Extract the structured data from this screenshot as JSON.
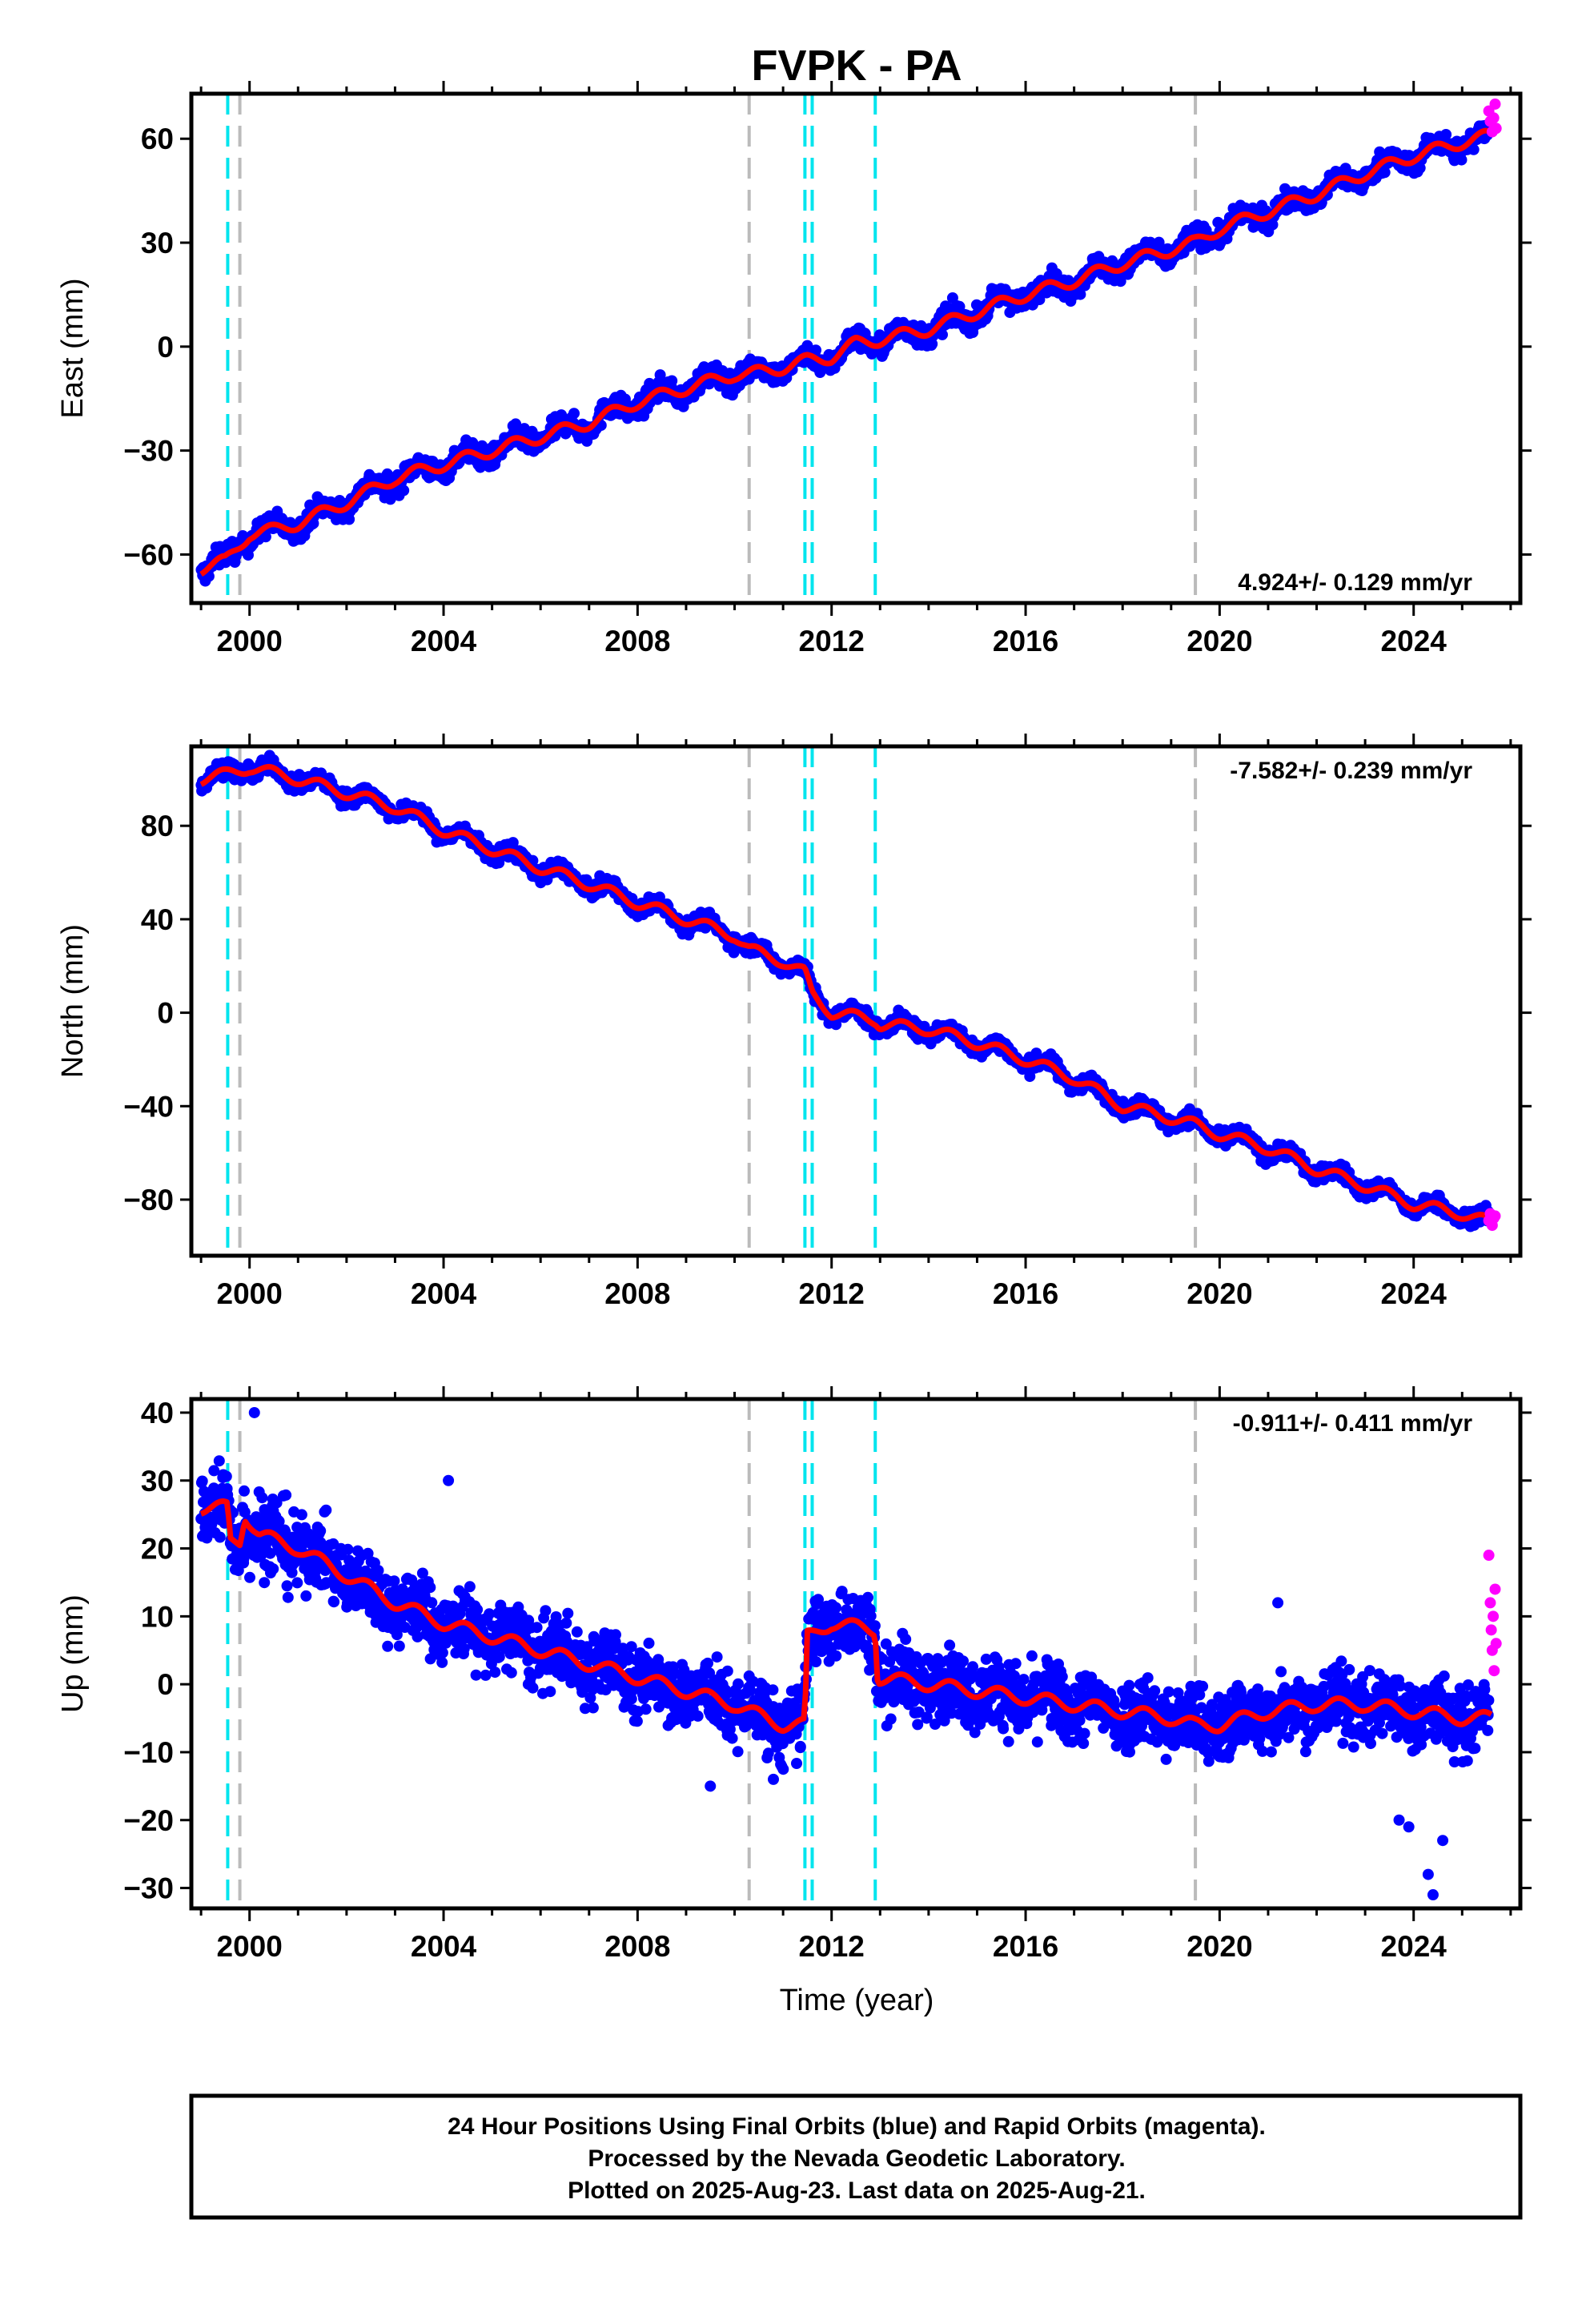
{
  "chart_data": {
    "type": "scatter",
    "title": "FVPK - PA",
    "xlabel": "Time (year)",
    "xlim": [
      1998.8,
      2026.2
    ],
    "xticks": [
      2000,
      2004,
      2008,
      2012,
      2016,
      2020,
      2024
    ],
    "events": {
      "cyan": [
        1999.55,
        2011.45,
        2011.6,
        2012.9
      ],
      "gray": [
        1999.8,
        2010.3,
        2019.5
      ]
    },
    "colors": {
      "final": "#0000ff",
      "rapid": "#ff00ff",
      "model": "#ff0000",
      "cyan_event": "#00e5ee",
      "gray_event": "#bbbbbb"
    },
    "panels": [
      {
        "component": "east",
        "ylabel": "East (mm)",
        "ylim": [
          -74,
          73
        ],
        "yticks": [
          -60,
          -30,
          0,
          30,
          60
        ],
        "rate_label": "4.924+/- 0.129 mm/yr",
        "rate_position": "bottom-right",
        "model_points": [
          [
            1999.0,
            -64
          ],
          [
            1999.5,
            -62
          ],
          [
            2000.0,
            -54
          ],
          [
            2000.5,
            -53
          ],
          [
            2001.0,
            -51
          ],
          [
            2002.0,
            -45
          ],
          [
            2003.0,
            -38
          ],
          [
            2004.0,
            -34
          ],
          [
            2005.0,
            -30
          ],
          [
            2006.0,
            -26
          ],
          [
            2007.0,
            -22
          ],
          [
            2008.0,
            -16
          ],
          [
            2009.0,
            -12
          ],
          [
            2010.0,
            -8
          ],
          [
            2010.3,
            -8
          ],
          [
            2011.0,
            -6
          ],
          [
            2011.5,
            -4
          ],
          [
            2012.0,
            -3
          ],
          [
            2012.5,
            1
          ],
          [
            2013.0,
            2
          ],
          [
            2014.0,
            5
          ],
          [
            2015.0,
            10
          ],
          [
            2016.0,
            15
          ],
          [
            2017.0,
            19
          ],
          [
            2018.0,
            24
          ],
          [
            2019.0,
            28
          ],
          [
            2019.5,
            30
          ],
          [
            2020.0,
            34
          ],
          [
            2021.0,
            39
          ],
          [
            2022.0,
            44
          ],
          [
            2023.0,
            50
          ],
          [
            2024.0,
            55
          ],
          [
            2025.0,
            59
          ],
          [
            2025.6,
            61
          ]
        ],
        "rapid_points": [
          [
            2025.55,
            68
          ],
          [
            2025.58,
            65
          ],
          [
            2025.62,
            62
          ],
          [
            2025.65,
            66
          ],
          [
            2025.68,
            70
          ],
          [
            2025.7,
            63
          ]
        ]
      },
      {
        "component": "north",
        "ylabel": "North (mm)",
        "ylim": [
          -104,
          114
        ],
        "yticks": [
          -80,
          -40,
          0,
          40,
          80
        ],
        "rate_label": "-7.582+/- 0.239 mm/yr",
        "rate_position": "top-right",
        "model_points": [
          [
            1999.0,
            100
          ],
          [
            1999.5,
            102
          ],
          [
            2000.0,
            105
          ],
          [
            2001.0,
            100
          ],
          [
            2002.0,
            94
          ],
          [
            2003.0,
            88
          ],
          [
            2004.0,
            78
          ],
          [
            2005.0,
            70
          ],
          [
            2006.0,
            62
          ],
          [
            2007.0,
            55
          ],
          [
            2008.0,
            47
          ],
          [
            2009.0,
            40
          ],
          [
            2010.0,
            33
          ],
          [
            2010.3,
            27
          ],
          [
            2011.0,
            22
          ],
          [
            2011.45,
            17
          ],
          [
            2011.6,
            8
          ],
          [
            2012.0,
            0
          ],
          [
            2012.9,
            -3
          ],
          [
            2013.0,
            -5
          ],
          [
            2014.0,
            -7
          ],
          [
            2015.0,
            -13
          ],
          [
            2016.0,
            -20
          ],
          [
            2017.0,
            -28
          ],
          [
            2018.0,
            -40
          ],
          [
            2019.0,
            -45
          ],
          [
            2019.5,
            -48
          ],
          [
            2020.0,
            -52
          ],
          [
            2021.0,
            -58
          ],
          [
            2022.0,
            -67
          ],
          [
            2023.0,
            -74
          ],
          [
            2024.0,
            -82
          ],
          [
            2025.0,
            -86
          ],
          [
            2025.6,
            -90
          ]
        ],
        "rapid_points": [
          [
            2025.55,
            -89
          ],
          [
            2025.58,
            -86
          ],
          [
            2025.62,
            -91
          ],
          [
            2025.65,
            -88
          ],
          [
            2025.68,
            -87
          ]
        ]
      },
      {
        "component": "up",
        "ylabel": "Up (mm)",
        "ylim": [
          -33,
          42
        ],
        "yticks": [
          -30,
          -20,
          -10,
          0,
          10,
          20,
          30,
          40
        ],
        "rate_label": "-0.911+/- 0.411 mm/yr",
        "rate_position": "top-right",
        "model_points": [
          [
            1999.0,
            26
          ],
          [
            1999.55,
            26
          ],
          [
            1999.6,
            21
          ],
          [
            1999.8,
            21
          ],
          [
            1999.9,
            25
          ],
          [
            2000.2,
            22
          ],
          [
            2001.0,
            20
          ],
          [
            2002.0,
            16
          ],
          [
            2003.0,
            12
          ],
          [
            2004.0,
            9
          ],
          [
            2005.0,
            7
          ],
          [
            2006.0,
            5
          ],
          [
            2007.0,
            3
          ],
          [
            2008.0,
            1
          ],
          [
            2009.0,
            -1
          ],
          [
            2010.0,
            -3
          ],
          [
            2010.3,
            -4
          ],
          [
            2011.0,
            -6
          ],
          [
            2011.45,
            -6
          ],
          [
            2011.5,
            7
          ],
          [
            2012.0,
            9
          ],
          [
            2012.9,
            8
          ],
          [
            2012.95,
            1
          ],
          [
            2014.0,
            0
          ],
          [
            2015.0,
            -1
          ],
          [
            2016.0,
            -2
          ],
          [
            2017.0,
            -3
          ],
          [
            2018.0,
            -4
          ],
          [
            2019.0,
            -5
          ],
          [
            2019.5,
            -6
          ],
          [
            2020.0,
            -6
          ],
          [
            2021.0,
            -4
          ],
          [
            2022.0,
            -3
          ],
          [
            2023.0,
            -3
          ],
          [
            2024.0,
            -4
          ],
          [
            2025.0,
            -5
          ],
          [
            2025.6,
            -5
          ]
        ],
        "rapid_points": [
          [
            2025.55,
            19
          ],
          [
            2025.58,
            12
          ],
          [
            2025.6,
            8
          ],
          [
            2025.62,
            5
          ],
          [
            2025.64,
            10
          ],
          [
            2025.66,
            2
          ],
          [
            2025.68,
            14
          ],
          [
            2025.7,
            6
          ]
        ],
        "outliers": [
          [
            2023.7,
            -20
          ],
          [
            2023.9,
            -21
          ],
          [
            2024.3,
            -28
          ],
          [
            2024.4,
            -31
          ],
          [
            2024.6,
            -23
          ],
          [
            2021.2,
            12
          ],
          [
            2004.1,
            30
          ],
          [
            2000.1,
            40
          ],
          [
            2009.5,
            -15
          ],
          [
            2010.8,
            -14
          ]
        ]
      }
    ],
    "caption": [
      "24 Hour Positions Using Final Orbits (blue) and Rapid Orbits (magenta).",
      "Processed by the Nevada Geodetic Laboratory.",
      "Plotted on 2025-Aug-23. Last data on 2025-Aug-21."
    ]
  }
}
